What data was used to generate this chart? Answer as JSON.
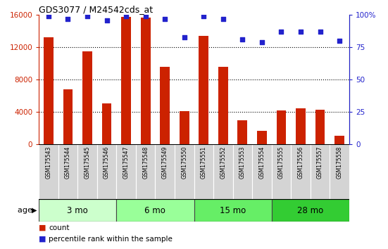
{
  "title": "GDS3077 / M24542cds_at",
  "samples": [
    "GSM175543",
    "GSM175544",
    "GSM175545",
    "GSM175546",
    "GSM175547",
    "GSM175548",
    "GSM175549",
    "GSM175550",
    "GSM175551",
    "GSM175552",
    "GSM175553",
    "GSM175554",
    "GSM175555",
    "GSM175556",
    "GSM175557",
    "GSM175558"
  ],
  "counts": [
    13200,
    6800,
    11500,
    5100,
    15800,
    15700,
    9600,
    4100,
    13400,
    9600,
    3000,
    1700,
    4200,
    4500,
    4300,
    1100
  ],
  "percentiles": [
    99,
    97,
    99,
    96,
    99,
    99,
    97,
    83,
    99,
    97,
    81,
    79,
    87,
    87,
    87,
    80
  ],
  "age_groups": [
    {
      "label": "3 mo",
      "start": 0,
      "end": 4,
      "color": "#ccffcc"
    },
    {
      "label": "6 mo",
      "start": 4,
      "end": 8,
      "color": "#99ff99"
    },
    {
      "label": "15 mo",
      "start": 8,
      "end": 12,
      "color": "#66ee66"
    },
    {
      "label": "28 mo",
      "start": 12,
      "end": 16,
      "color": "#33cc33"
    }
  ],
  "bar_color": "#cc2200",
  "dot_color": "#2222cc",
  "left_ylim": [
    0,
    16000
  ],
  "right_ylim": [
    0,
    100
  ],
  "left_yticks": [
    0,
    4000,
    8000,
    12000,
    16000
  ],
  "right_yticks": [
    0,
    25,
    50,
    75,
    100
  ],
  "grid_lines": [
    4000,
    8000,
    12000
  ],
  "xlabel_bg": "#d4d4d4",
  "age_border_color": "#444444"
}
